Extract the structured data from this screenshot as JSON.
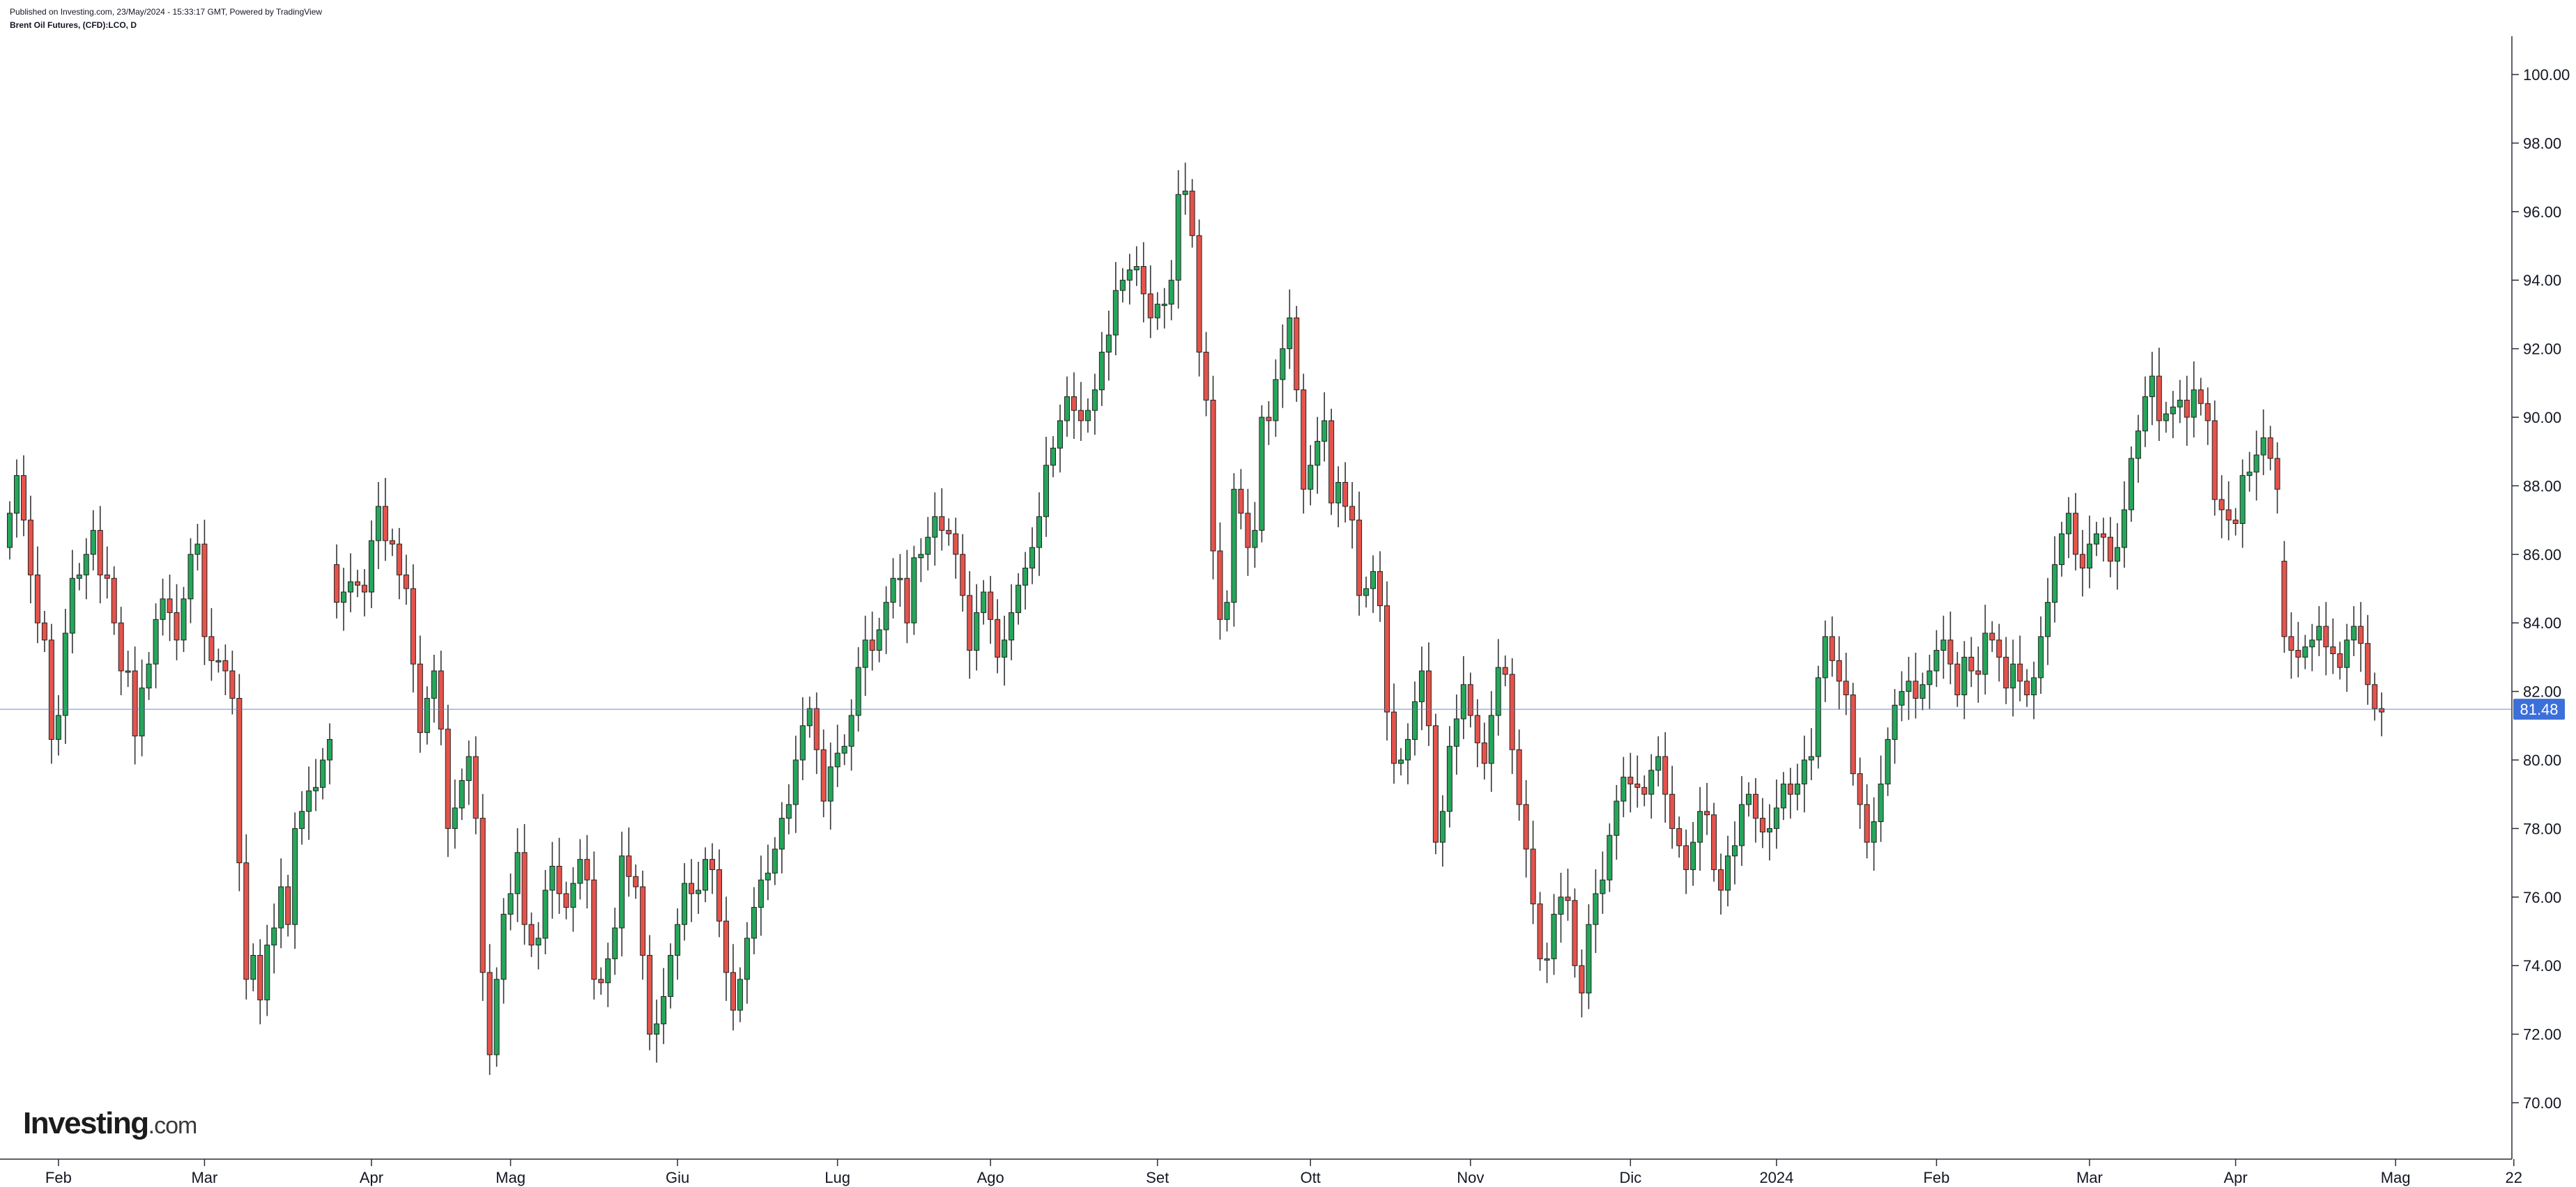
{
  "header": {
    "published": "Published on Investing.com, 23/May/2024 - 15:33:17 GMT, Powered by TradingView",
    "title": "Brent Oil Futures, (CFD):LCO, D"
  },
  "logo": {
    "main": "Investing",
    "suffix": ".com"
  },
  "colors": {
    "up": "#26a65b",
    "down": "#e5534b",
    "wick": "#333333",
    "last_price": "#3d6fd9",
    "grid_line": "#4a7bd8"
  },
  "chart_data": {
    "type": "candlestick",
    "ylim": [
      68.5,
      101
    ],
    "y_ticks": [
      "70.00",
      "72.00",
      "74.00",
      "76.00",
      "78.00",
      "80.00",
      "82.00",
      "84.00",
      "86.00",
      "88.00",
      "90.00",
      "92.00",
      "94.00",
      "96.00",
      "98.00",
      "100.00"
    ],
    "x_ticks": [
      "Feb",
      "Mar",
      "Apr",
      "Mag",
      "Giu",
      "Lug",
      "Ago",
      "Set",
      "Ott",
      "Nov",
      "Dic",
      "2024",
      "Feb",
      "Mar",
      "Apr",
      "Mag",
      "22"
    ],
    "x_tick_index": [
      7,
      28,
      52,
      72,
      96,
      119,
      141,
      165,
      187,
      210,
      233,
      254,
      277,
      299,
      320,
      343,
      360
    ],
    "last_price": {
      "value": 81.48,
      "label": "81.48"
    },
    "series": [
      {
        "o": 86.2,
        "c": 87.2
      },
      {
        "o": 87.2,
        "c": 88.3
      },
      {
        "o": 88.3,
        "c": 87.0
      },
      {
        "o": 87.0,
        "c": 85.4
      },
      {
        "o": 85.4,
        "c": 84.0
      },
      {
        "o": 84.0,
        "c": 83.5
      },
      {
        "o": 83.5,
        "c": 80.6
      },
      {
        "o": 80.6,
        "c": 81.3
      },
      {
        "o": 81.3,
        "c": 83.7
      },
      {
        "o": 83.7,
        "c": 85.3
      },
      {
        "o": 85.3,
        "c": 85.4
      },
      {
        "o": 85.4,
        "c": 86.0
      },
      {
        "o": 86.0,
        "c": 86.7
      },
      {
        "o": 86.7,
        "c": 85.4
      },
      {
        "o": 85.4,
        "c": 85.3
      },
      {
        "o": 85.3,
        "c": 84.0
      },
      {
        "o": 84.0,
        "c": 82.6
      },
      {
        "o": 82.6,
        "c": 82.6
      },
      {
        "o": 82.6,
        "c": 80.7
      },
      {
        "o": 80.7,
        "c": 82.1
      },
      {
        "o": 82.1,
        "c": 82.8
      },
      {
        "o": 82.8,
        "c": 84.1
      },
      {
        "o": 84.1,
        "c": 84.7
      },
      {
        "o": 84.7,
        "c": 84.3
      },
      {
        "o": 84.3,
        "c": 83.5
      },
      {
        "o": 83.5,
        "c": 84.7
      },
      {
        "o": 84.7,
        "c": 86.0
      },
      {
        "o": 86.0,
        "c": 86.3
      },
      {
        "o": 86.3,
        "c": 83.6
      },
      {
        "o": 83.6,
        "c": 82.9
      },
      {
        "o": 82.9,
        "c": 82.9
      },
      {
        "o": 82.9,
        "c": 82.6
      },
      {
        "o": 82.6,
        "c": 81.8
      },
      {
        "o": 81.8,
        "c": 77.0
      },
      {
        "o": 77.0,
        "c": 73.6
      },
      {
        "o": 73.6,
        "c": 74.3
      },
      {
        "o": 74.3,
        "c": 73.0
      },
      {
        "o": 73.0,
        "c": 74.6
      },
      {
        "o": 74.6,
        "c": 75.1
      },
      {
        "o": 75.1,
        "c": 76.3
      },
      {
        "o": 76.3,
        "c": 75.2
      },
      {
        "o": 75.2,
        "c": 78.0
      },
      {
        "o": 78.0,
        "c": 78.5
      },
      {
        "o": 78.5,
        "c": 79.1
      },
      {
        "o": 79.1,
        "c": 79.2
      },
      {
        "o": 79.2,
        "c": 80.0
      },
      {
        "o": 80.0,
        "c": 80.6
      },
      {
        "o": 85.7,
        "c": 84.6
      },
      {
        "o": 84.6,
        "c": 84.9
      },
      {
        "o": 84.9,
        "c": 85.2
      },
      {
        "o": 85.2,
        "c": 85.1
      },
      {
        "o": 85.1,
        "c": 84.9
      },
      {
        "o": 84.9,
        "c": 86.4
      },
      {
        "o": 86.4,
        "c": 87.4
      },
      {
        "o": 87.4,
        "c": 86.4
      },
      {
        "o": 86.4,
        "c": 86.3
      },
      {
        "o": 86.3,
        "c": 85.4
      },
      {
        "o": 85.4,
        "c": 85.0
      },
      {
        "o": 85.0,
        "c": 82.8
      },
      {
        "o": 82.8,
        "c": 80.8
      },
      {
        "o": 80.8,
        "c": 81.8
      },
      {
        "o": 81.8,
        "c": 82.6
      },
      {
        "o": 82.6,
        "c": 80.9
      },
      {
        "o": 80.9,
        "c": 78.0
      },
      {
        "o": 78.0,
        "c": 78.6
      },
      {
        "o": 78.6,
        "c": 79.4
      },
      {
        "o": 79.4,
        "c": 80.1
      },
      {
        "o": 80.1,
        "c": 78.3
      },
      {
        "o": 78.3,
        "c": 73.8
      },
      {
        "o": 73.8,
        "c": 71.4
      },
      {
        "o": 71.4,
        "c": 73.6
      },
      {
        "o": 73.6,
        "c": 75.5
      },
      {
        "o": 75.5,
        "c": 76.1
      },
      {
        "o": 76.1,
        "c": 77.3
      },
      {
        "o": 77.3,
        "c": 75.2
      },
      {
        "o": 75.2,
        "c": 74.6
      },
      {
        "o": 74.6,
        "c": 74.8
      },
      {
        "o": 74.8,
        "c": 76.2
      },
      {
        "o": 76.2,
        "c": 76.9
      },
      {
        "o": 76.9,
        "c": 76.1
      },
      {
        "o": 76.1,
        "c": 75.7
      },
      {
        "o": 75.7,
        "c": 76.4
      },
      {
        "o": 76.4,
        "c": 77.1
      },
      {
        "o": 77.1,
        "c": 76.5
      },
      {
        "o": 76.5,
        "c": 73.6
      },
      {
        "o": 73.6,
        "c": 73.5
      },
      {
        "o": 73.5,
        "c": 74.2
      },
      {
        "o": 74.2,
        "c": 75.1
      },
      {
        "o": 75.1,
        "c": 77.2
      },
      {
        "o": 77.2,
        "c": 76.6
      },
      {
        "o": 76.6,
        "c": 76.3
      },
      {
        "o": 76.3,
        "c": 74.3
      },
      {
        "o": 74.3,
        "c": 72.0
      },
      {
        "o": 72.0,
        "c": 72.3
      },
      {
        "o": 72.3,
        "c": 73.1
      },
      {
        "o": 73.1,
        "c": 74.3
      },
      {
        "o": 74.3,
        "c": 75.2
      },
      {
        "o": 75.2,
        "c": 76.4
      },
      {
        "o": 76.4,
        "c": 76.1
      },
      {
        "o": 76.1,
        "c": 76.2
      },
      {
        "o": 76.2,
        "c": 77.1
      },
      {
        "o": 77.1,
        "c": 76.8
      },
      {
        "o": 76.8,
        "c": 75.3
      },
      {
        "o": 75.3,
        "c": 73.8
      },
      {
        "o": 73.8,
        "c": 72.7
      },
      {
        "o": 72.7,
        "c": 73.6
      },
      {
        "o": 73.6,
        "c": 74.8
      },
      {
        "o": 74.8,
        "c": 75.7
      },
      {
        "o": 75.7,
        "c": 76.5
      },
      {
        "o": 76.5,
        "c": 76.7
      },
      {
        "o": 76.7,
        "c": 77.4
      },
      {
        "o": 77.4,
        "c": 78.3
      },
      {
        "o": 78.3,
        "c": 78.7
      },
      {
        "o": 78.7,
        "c": 80.0
      },
      {
        "o": 80.0,
        "c": 81.0
      },
      {
        "o": 81.0,
        "c": 81.5
      },
      {
        "o": 81.5,
        "c": 80.3
      },
      {
        "o": 80.3,
        "c": 78.8
      },
      {
        "o": 78.8,
        "c": 79.8
      },
      {
        "o": 79.8,
        "c": 80.2
      },
      {
        "o": 80.2,
        "c": 80.4
      },
      {
        "o": 80.4,
        "c": 81.3
      },
      {
        "o": 81.3,
        "c": 82.7
      },
      {
        "o": 82.7,
        "c": 83.5
      },
      {
        "o": 83.5,
        "c": 83.2
      },
      {
        "o": 83.2,
        "c": 83.8
      },
      {
        "o": 83.8,
        "c": 84.6
      },
      {
        "o": 84.6,
        "c": 85.3
      },
      {
        "o": 85.3,
        "c": 85.3
      },
      {
        "o": 85.3,
        "c": 84.0
      },
      {
        "o": 84.0,
        "c": 85.9
      },
      {
        "o": 85.9,
        "c": 86.0
      },
      {
        "o": 86.0,
        "c": 86.5
      },
      {
        "o": 86.5,
        "c": 87.1
      },
      {
        "o": 87.1,
        "c": 86.7
      },
      {
        "o": 86.7,
        "c": 86.6
      },
      {
        "o": 86.6,
        "c": 86.0
      },
      {
        "o": 86.0,
        "c": 84.8
      },
      {
        "o": 84.8,
        "c": 83.2
      },
      {
        "o": 83.2,
        "c": 84.3
      },
      {
        "o": 84.3,
        "c": 84.9
      },
      {
        "o": 84.9,
        "c": 84.1
      },
      {
        "o": 84.1,
        "c": 83.0
      },
      {
        "o": 83.0,
        "c": 83.5
      },
      {
        "o": 83.5,
        "c": 84.3
      },
      {
        "o": 84.3,
        "c": 85.1
      },
      {
        "o": 85.1,
        "c": 85.6
      },
      {
        "o": 85.6,
        "c": 86.2
      },
      {
        "o": 86.2,
        "c": 87.1
      },
      {
        "o": 87.1,
        "c": 88.6
      },
      {
        "o": 88.6,
        "c": 89.1
      },
      {
        "o": 89.1,
        "c": 89.9
      },
      {
        "o": 89.9,
        "c": 90.6
      },
      {
        "o": 90.6,
        "c": 90.2
      },
      {
        "o": 90.2,
        "c": 89.9
      },
      {
        "o": 89.9,
        "c": 90.2
      },
      {
        "o": 90.2,
        "c": 90.8
      },
      {
        "o": 90.8,
        "c": 91.9
      },
      {
        "o": 91.9,
        "c": 92.4
      },
      {
        "o": 92.4,
        "c": 93.7
      },
      {
        "o": 93.7,
        "c": 94.0
      },
      {
        "o": 94.0,
        "c": 94.3
      },
      {
        "o": 94.3,
        "c": 94.4
      },
      {
        "o": 94.4,
        "c": 93.6
      },
      {
        "o": 93.6,
        "c": 92.9
      },
      {
        "o": 92.9,
        "c": 93.3
      },
      {
        "o": 93.3,
        "c": 93.3
      },
      {
        "o": 93.3,
        "c": 94.0
      },
      {
        "o": 94.0,
        "c": 96.5
      },
      {
        "o": 96.5,
        "c": 96.6
      },
      {
        "o": 96.6,
        "c": 95.3
      },
      {
        "o": 95.3,
        "c": 91.9
      },
      {
        "o": 91.9,
        "c": 90.5
      },
      {
        "o": 90.5,
        "c": 86.1
      },
      {
        "o": 86.1,
        "c": 84.1
      },
      {
        "o": 84.1,
        "c": 84.6
      },
      {
        "o": 84.6,
        "c": 87.9
      },
      {
        "o": 87.9,
        "c": 87.2
      },
      {
        "o": 87.2,
        "c": 86.2
      },
      {
        "o": 86.2,
        "c": 86.7
      },
      {
        "o": 86.7,
        "c": 90.0
      },
      {
        "o": 90.0,
        "c": 89.9
      },
      {
        "o": 89.9,
        "c": 91.1
      },
      {
        "o": 91.1,
        "c": 92.0
      },
      {
        "o": 92.0,
        "c": 92.9
      },
      {
        "o": 92.9,
        "c": 90.8
      },
      {
        "o": 90.8,
        "c": 87.9
      },
      {
        "o": 87.9,
        "c": 88.6
      },
      {
        "o": 88.6,
        "c": 89.3
      },
      {
        "o": 89.3,
        "c": 89.9
      },
      {
        "o": 89.9,
        "c": 87.5
      },
      {
        "o": 87.5,
        "c": 88.1
      },
      {
        "o": 88.1,
        "c": 87.4
      },
      {
        "o": 87.4,
        "c": 87.0
      },
      {
        "o": 87.0,
        "c": 84.8
      },
      {
        "o": 84.8,
        "c": 85.0
      },
      {
        "o": 85.0,
        "c": 85.5
      },
      {
        "o": 85.5,
        "c": 84.5
      },
      {
        "o": 84.5,
        "c": 81.4
      },
      {
        "o": 81.4,
        "c": 79.9
      },
      {
        "o": 79.9,
        "c": 80.0
      },
      {
        "o": 80.0,
        "c": 80.6
      },
      {
        "o": 80.6,
        "c": 81.7
      },
      {
        "o": 81.7,
        "c": 82.6
      },
      {
        "o": 82.6,
        "c": 81.0
      },
      {
        "o": 81.0,
        "c": 77.6
      },
      {
        "o": 77.6,
        "c": 78.5
      },
      {
        "o": 78.5,
        "c": 80.4
      },
      {
        "o": 80.4,
        "c": 81.2
      },
      {
        "o": 81.2,
        "c": 82.2
      },
      {
        "o": 82.2,
        "c": 81.3
      },
      {
        "o": 81.3,
        "c": 80.5
      },
      {
        "o": 80.5,
        "c": 79.9
      },
      {
        "o": 79.9,
        "c": 81.3
      },
      {
        "o": 81.3,
        "c": 82.7
      },
      {
        "o": 82.7,
        "c": 82.5
      },
      {
        "o": 82.5,
        "c": 80.3
      },
      {
        "o": 80.3,
        "c": 78.7
      },
      {
        "o": 78.7,
        "c": 77.4
      },
      {
        "o": 77.4,
        "c": 75.8
      },
      {
        "o": 75.8,
        "c": 74.2
      },
      {
        "o": 74.2,
        "c": 74.2
      },
      {
        "o": 74.2,
        "c": 75.5
      },
      {
        "o": 75.5,
        "c": 76.0
      },
      {
        "o": 76.0,
        "c": 75.9
      },
      {
        "o": 75.9,
        "c": 74.0
      },
      {
        "o": 74.0,
        "c": 73.2
      },
      {
        "o": 73.2,
        "c": 75.2
      },
      {
        "o": 75.2,
        "c": 76.1
      },
      {
        "o": 76.1,
        "c": 76.5
      },
      {
        "o": 76.5,
        "c": 77.8
      },
      {
        "o": 77.8,
        "c": 78.8
      },
      {
        "o": 78.8,
        "c": 79.5
      },
      {
        "o": 79.5,
        "c": 79.3
      },
      {
        "o": 79.3,
        "c": 79.2
      },
      {
        "o": 79.2,
        "c": 79.0
      },
      {
        "o": 79.0,
        "c": 79.7
      },
      {
        "o": 79.7,
        "c": 80.1
      },
      {
        "o": 80.1,
        "c": 79.0
      },
      {
        "o": 79.0,
        "c": 78.0
      },
      {
        "o": 78.0,
        "c": 77.5
      },
      {
        "o": 77.5,
        "c": 76.8
      },
      {
        "o": 76.8,
        "c": 77.6
      },
      {
        "o": 77.6,
        "c": 78.5
      },
      {
        "o": 78.5,
        "c": 78.4
      },
      {
        "o": 78.4,
        "c": 76.8
      },
      {
        "o": 76.8,
        "c": 76.2
      },
      {
        "o": 76.2,
        "c": 77.2
      },
      {
        "o": 77.2,
        "c": 77.5
      },
      {
        "o": 77.5,
        "c": 78.7
      },
      {
        "o": 78.7,
        "c": 79.0
      },
      {
        "o": 79.0,
        "c": 78.3
      },
      {
        "o": 78.3,
        "c": 77.9
      },
      {
        "o": 77.9,
        "c": 78.0
      },
      {
        "o": 78.0,
        "c": 78.6
      },
      {
        "o": 78.6,
        "c": 79.3
      },
      {
        "o": 79.3,
        "c": 79.0
      },
      {
        "o": 79.0,
        "c": 79.3
      },
      {
        "o": 79.3,
        "c": 80.0
      },
      {
        "o": 80.0,
        "c": 80.1
      },
      {
        "o": 80.1,
        "c": 82.4
      },
      {
        "o": 82.4,
        "c": 83.6
      },
      {
        "o": 83.6,
        "c": 82.9
      },
      {
        "o": 82.9,
        "c": 82.3
      },
      {
        "o": 82.3,
        "c": 81.9
      },
      {
        "o": 81.9,
        "c": 79.6
      },
      {
        "o": 79.6,
        "c": 78.7
      },
      {
        "o": 78.7,
        "c": 77.6
      },
      {
        "o": 77.6,
        "c": 78.2
      },
      {
        "o": 78.2,
        "c": 79.3
      },
      {
        "o": 79.3,
        "c": 80.6
      },
      {
        "o": 80.6,
        "c": 81.6
      },
      {
        "o": 81.6,
        "c": 82.0
      },
      {
        "o": 82.0,
        "c": 82.3
      },
      {
        "o": 82.3,
        "c": 81.8
      },
      {
        "o": 81.8,
        "c": 82.2
      },
      {
        "o": 82.2,
        "c": 82.6
      },
      {
        "o": 82.6,
        "c": 83.2
      },
      {
        "o": 83.2,
        "c": 83.5
      },
      {
        "o": 83.5,
        "c": 82.8
      },
      {
        "o": 82.8,
        "c": 81.9
      },
      {
        "o": 81.9,
        "c": 83.0
      },
      {
        "o": 83.0,
        "c": 82.6
      },
      {
        "o": 82.6,
        "c": 82.5
      },
      {
        "o": 82.5,
        "c": 83.7
      },
      {
        "o": 83.7,
        "c": 83.5
      },
      {
        "o": 83.5,
        "c": 83.0
      },
      {
        "o": 83.0,
        "c": 82.1
      },
      {
        "o": 82.1,
        "c": 82.8
      },
      {
        "o": 82.8,
        "c": 82.3
      },
      {
        "o": 82.3,
        "c": 81.9
      },
      {
        "o": 81.9,
        "c": 82.4
      },
      {
        "o": 82.4,
        "c": 83.6
      },
      {
        "o": 83.6,
        "c": 84.6
      },
      {
        "o": 84.6,
        "c": 85.7
      },
      {
        "o": 85.7,
        "c": 86.6
      },
      {
        "o": 86.6,
        "c": 87.2
      },
      {
        "o": 87.2,
        "c": 86.0
      },
      {
        "o": 86.0,
        "c": 85.6
      },
      {
        "o": 85.6,
        "c": 86.3
      },
      {
        "o": 86.3,
        "c": 86.6
      },
      {
        "o": 86.6,
        "c": 86.5
      },
      {
        "o": 86.5,
        "c": 85.8
      },
      {
        "o": 85.8,
        "c": 86.2
      },
      {
        "o": 86.2,
        "c": 87.3
      },
      {
        "o": 87.3,
        "c": 88.8
      },
      {
        "o": 88.8,
        "c": 89.6
      },
      {
        "o": 89.6,
        "c": 90.6
      },
      {
        "o": 90.6,
        "c": 91.2
      },
      {
        "o": 91.2,
        "c": 89.9
      },
      {
        "o": 89.9,
        "c": 90.1
      },
      {
        "o": 90.1,
        "c": 90.3
      },
      {
        "o": 90.3,
        "c": 90.5
      },
      {
        "o": 90.5,
        "c": 90.0
      },
      {
        "o": 90.0,
        "c": 90.8
      },
      {
        "o": 90.8,
        "c": 90.4
      },
      {
        "o": 90.4,
        "c": 89.9
      },
      {
        "o": 89.9,
        "c": 87.6
      },
      {
        "o": 87.6,
        "c": 87.3
      },
      {
        "o": 87.3,
        "c": 87.0
      },
      {
        "o": 87.0,
        "c": 86.9
      },
      {
        "o": 86.9,
        "c": 88.3
      },
      {
        "o": 88.3,
        "c": 88.4
      },
      {
        "o": 88.4,
        "c": 88.9
      },
      {
        "o": 88.9,
        "c": 89.4
      },
      {
        "o": 89.4,
        "c": 88.8
      },
      {
        "o": 88.8,
        "c": 87.9
      },
      {
        "o": 85.8,
        "c": 83.6
      },
      {
        "o": 83.6,
        "c": 83.2
      },
      {
        "o": 83.2,
        "c": 83.0
      },
      {
        "o": 83.0,
        "c": 83.3
      },
      {
        "o": 83.3,
        "c": 83.5
      },
      {
        "o": 83.5,
        "c": 83.9
      },
      {
        "o": 83.9,
        "c": 83.3
      },
      {
        "o": 83.3,
        "c": 83.1
      },
      {
        "o": 83.1,
        "c": 82.7
      },
      {
        "o": 82.7,
        "c": 83.5
      },
      {
        "o": 83.5,
        "c": 83.9
      },
      {
        "o": 83.9,
        "c": 83.4
      },
      {
        "o": 83.4,
        "c": 82.2
      },
      {
        "o": 82.2,
        "c": 81.5
      },
      {
        "o": 81.5,
        "c": 81.4
      }
    ]
  }
}
